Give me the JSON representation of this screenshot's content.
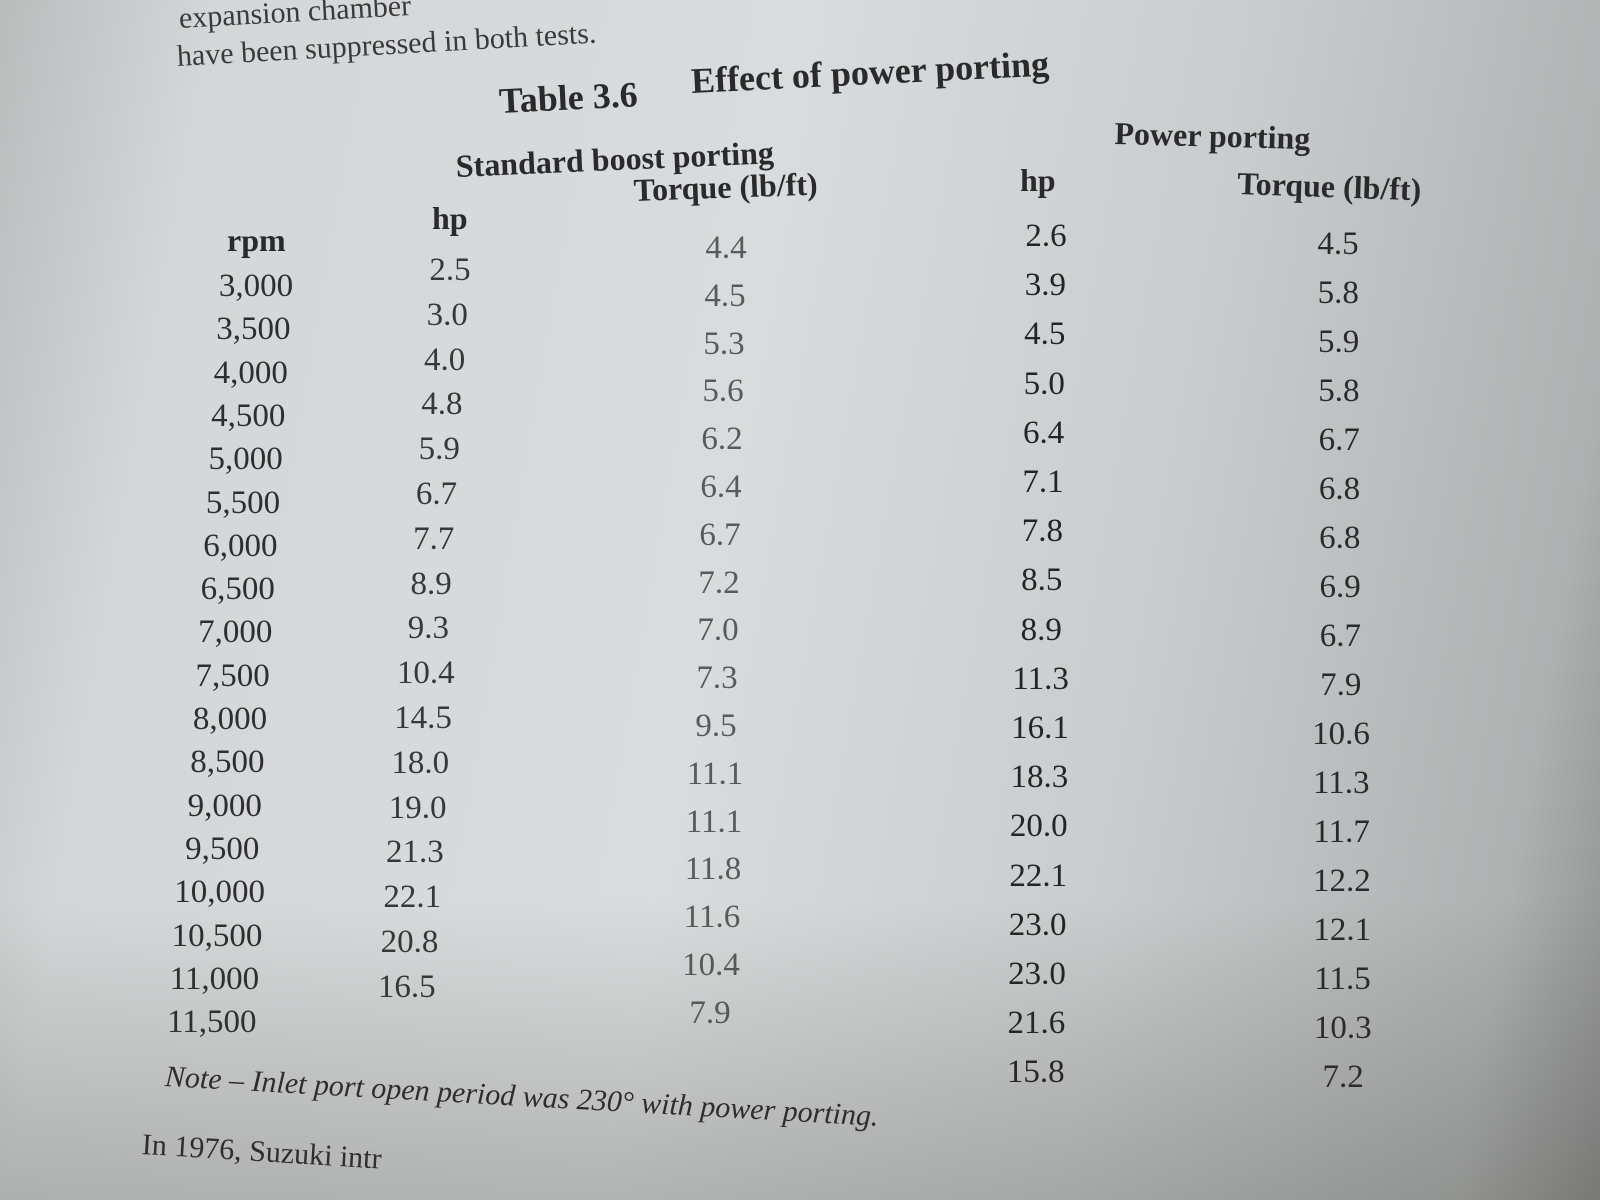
{
  "intro_lines": [
    "expansion chamber",
    "have been suppressed in both tests."
  ],
  "table": {
    "number": "Table 3.6",
    "title": "Effect of power porting",
    "group_standard": "Standard boost porting",
    "group_power": "Power porting",
    "columns": {
      "rpm": "rpm",
      "std_hp": "hp",
      "std_torque": "Torque (lb/ft)",
      "pow_hp": "hp",
      "pow_torque": "Torque (lb/ft)"
    },
    "rpm": [
      "3,000",
      "3,500",
      "4,000",
      "4,500",
      "5,000",
      "5,500",
      "6,000",
      "6,500",
      "7,000",
      "7,500",
      "8,000",
      "8,500",
      "9,000",
      "9,500",
      "10,000",
      "10,500",
      "11,000",
      "11,500"
    ],
    "std_hp": [
      "2.5",
      "3.0",
      "4.0",
      "4.8",
      "5.9",
      "6.7",
      "7.7",
      "8.9",
      "9.3",
      "10.4",
      "14.5",
      "18.0",
      "19.0",
      "21.3",
      "22.1",
      "20.8",
      "16.5"
    ],
    "std_torque": [
      "4.4",
      "4.5",
      "5.3",
      "5.6",
      "6.2",
      "6.4",
      "6.7",
      "7.2",
      "7.0",
      "7.3",
      "9.5",
      "11.1",
      "11.1",
      "11.8",
      "11.6",
      "10.4",
      "7.9"
    ],
    "pow_hp": [
      "2.6",
      "3.9",
      "4.5",
      "5.0",
      "6.4",
      "7.1",
      "7.8",
      "8.5",
      "8.9",
      "11.3",
      "16.1",
      "18.3",
      "20.0",
      "22.1",
      "23.0",
      "23.0",
      "21.6",
      "15.8"
    ],
    "pow_torque": [
      "4.5",
      "5.8",
      "5.9",
      "5.8",
      "6.7",
      "6.8",
      "6.8",
      "6.9",
      "6.7",
      "7.9",
      "10.6",
      "11.3",
      "11.7",
      "12.2",
      "12.1",
      "11.5",
      "10.3",
      "7.2"
    ]
  },
  "note": "Note – Inlet port open period was 230° with power porting.",
  "next_para": "In 1976, Suzuki intr"
}
